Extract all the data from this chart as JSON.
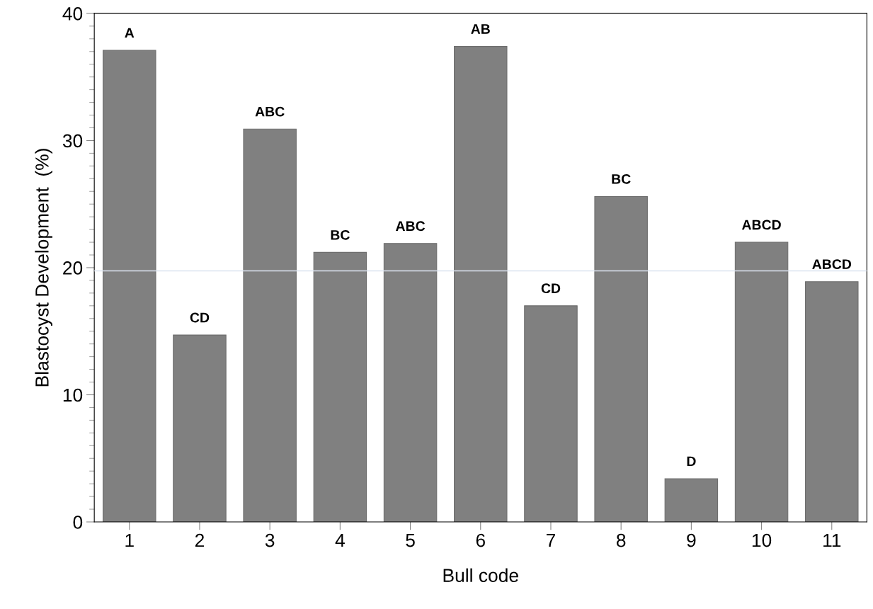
{
  "chart_data": {
    "type": "bar",
    "xlabel": "Bull code",
    "ylabel": "Blastocyst Development  (%)",
    "categories": [
      "1",
      "2",
      "3",
      "4",
      "5",
      "6",
      "7",
      "8",
      "9",
      "10",
      "11"
    ],
    "values": [
      37.1,
      14.7,
      30.9,
      21.2,
      21.9,
      37.4,
      17.0,
      25.6,
      3.4,
      22.0,
      18.9
    ],
    "color": "#808080",
    "ylim": [
      0,
      40
    ],
    "yticks": [
      0,
      10,
      20,
      30,
      40
    ],
    "ref_lines": [
      {
        "axis": "y",
        "value": 19.75,
        "color": "#dce4f0"
      }
    ],
    "annotations": [
      {
        "text": "A",
        "x": "1",
        "y": 37.1
      },
      {
        "text": "CD",
        "x": "2",
        "y": 14.7
      },
      {
        "text": "ABC",
        "x": "3",
        "y": 30.9
      },
      {
        "text": "BC",
        "x": "4",
        "y": 21.2
      },
      {
        "text": "ABC",
        "x": "5",
        "y": 21.9
      },
      {
        "text": "AB",
        "x": "6",
        "y": 37.4
      },
      {
        "text": "CD",
        "x": "7",
        "y": 17.0
      },
      {
        "text": "BC",
        "x": "8",
        "y": 25.6
      },
      {
        "text": "D",
        "x": "9",
        "y": 3.4
      },
      {
        "text": "ABCD",
        "x": "10",
        "y": 22.0
      },
      {
        "text": "ABCD",
        "x": "11",
        "y": 18.9
      }
    ],
    "grid": false,
    "legend": false
  }
}
